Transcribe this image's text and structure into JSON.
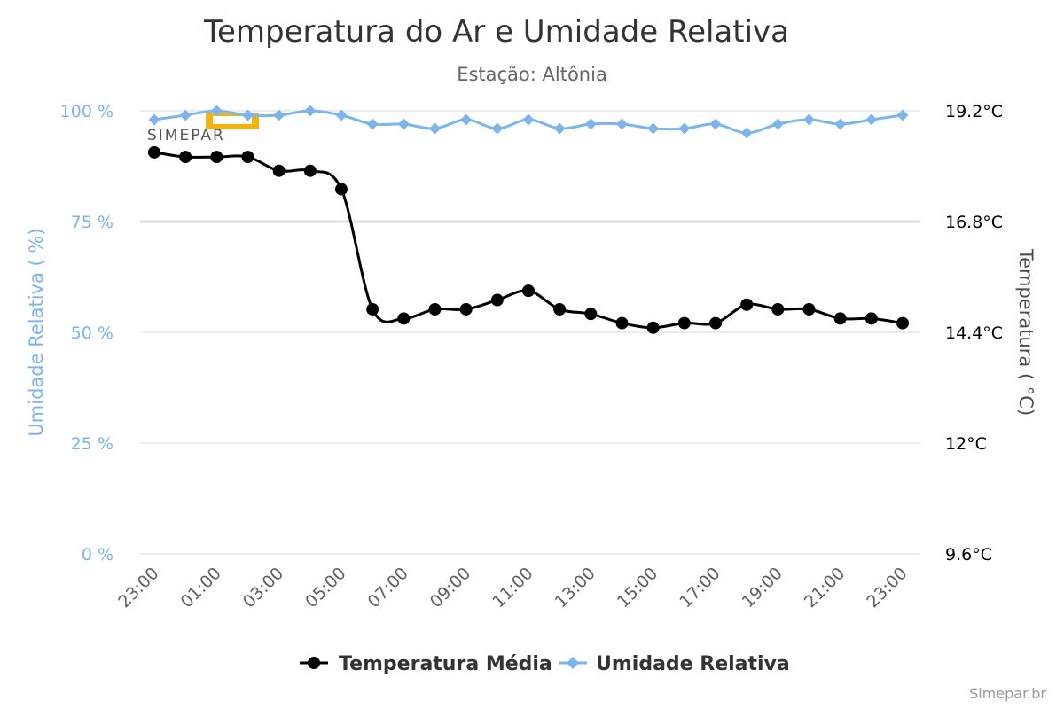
{
  "title": "Temperatura do Ar e Umidade Relativa",
  "subtitle": "Estação: Altônia",
  "credit": "Simepar.br",
  "watermark": "SIMEPAR",
  "axes": {
    "left_title": "Umidade Relativa ( %)",
    "right_title": "Temperatura ( °C)",
    "left_ticks": [
      "0 %",
      "25 %",
      "50 %",
      "75 %",
      "100 %"
    ],
    "right_ticks": [
      "9.6°C",
      "12°C",
      "14.4°C",
      "16.8°C",
      "19.2°C"
    ],
    "x_ticks": [
      "23:00",
      "01:00",
      "03:00",
      "05:00",
      "07:00",
      "09:00",
      "11:00",
      "13:00",
      "15:00",
      "17:00",
      "19:00",
      "21:00",
      "23:00"
    ]
  },
  "legend": [
    {
      "label": "Temperatura Média",
      "color": "#000000",
      "marker": "circle"
    },
    {
      "label": "Umidade Relativa",
      "color": "#7cb5ec",
      "marker": "diamond"
    }
  ],
  "chart_data": {
    "type": "line",
    "title": "Temperatura do Ar e Umidade Relativa",
    "subtitle": "Estação: Altônia",
    "x": [
      "23:00",
      "00:00",
      "01:00",
      "02:00",
      "03:00",
      "04:00",
      "05:00",
      "06:00",
      "07:00",
      "08:00",
      "09:00",
      "10:00",
      "11:00",
      "12:00",
      "13:00",
      "14:00",
      "15:00",
      "16:00",
      "17:00",
      "18:00",
      "19:00",
      "20:00",
      "21:00",
      "22:00",
      "23:00"
    ],
    "xlabel": "",
    "y_left": {
      "label": "Umidade Relativa ( %)",
      "range": [
        0,
        100
      ],
      "unit": "%"
    },
    "y_right": {
      "label": "Temperatura ( °C)",
      "range": [
        9.6,
        19.2
      ],
      "unit": "°C"
    },
    "grid": "horizontal",
    "legend_position": "bottom-center",
    "series": [
      {
        "name": "Temperatura Média",
        "axis": "right",
        "color": "#000000",
        "values": [
          18.3,
          18.2,
          18.2,
          18.2,
          17.9,
          17.9,
          17.5,
          14.9,
          14.7,
          14.9,
          14.9,
          15.1,
          15.3,
          14.9,
          14.8,
          14.6,
          14.5,
          14.6,
          14.6,
          15.0,
          14.9,
          14.9,
          14.7,
          14.7,
          14.6
        ]
      },
      {
        "name": "Umidade Relativa",
        "axis": "left",
        "color": "#7cb5ec",
        "values": [
          98,
          99,
          100,
          99,
          99,
          100,
          99,
          97,
          97,
          96,
          98,
          96,
          98,
          96,
          97,
          97,
          96,
          96,
          97,
          95,
          97,
          98,
          97,
          98,
          99
        ]
      }
    ]
  }
}
